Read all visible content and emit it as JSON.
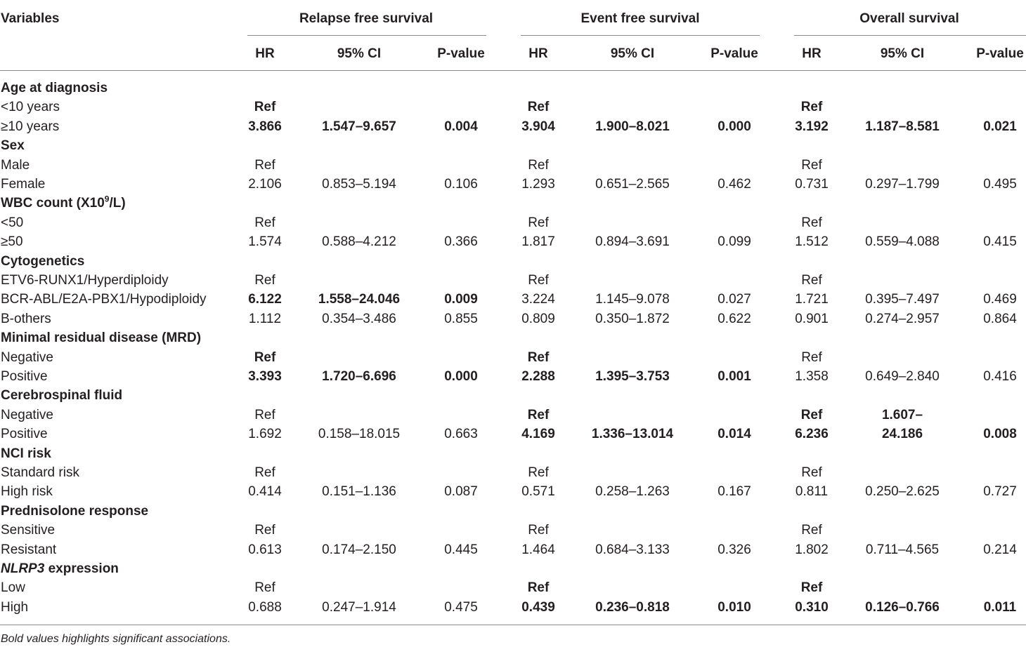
{
  "header": {
    "variables": "Variables",
    "groups": [
      "Relapse free survival",
      "Event free survival",
      "Overall survival"
    ],
    "sub": [
      "HR",
      "95% CI",
      "P-value"
    ]
  },
  "rows": [
    {
      "type": "cat",
      "label": "Age at diagnosis"
    },
    {
      "type": "data",
      "label": "<10 years",
      "v": [
        "Ref",
        "",
        "",
        "Ref",
        "",
        "",
        "Ref",
        "",
        ""
      ],
      "bold": [
        1,
        0,
        0,
        1,
        0,
        0,
        1,
        0,
        0
      ]
    },
    {
      "type": "data",
      "label": "≥10 years",
      "v": [
        "3.866",
        "1.547–9.657",
        "0.004",
        "3.904",
        "1.900–8.021",
        "0.000",
        "3.192",
        "1.187–8.581",
        "0.021"
      ],
      "bold": [
        1,
        1,
        1,
        1,
        1,
        1,
        1,
        1,
        1
      ]
    },
    {
      "type": "cat",
      "label": "Sex"
    },
    {
      "type": "data",
      "label": "Male",
      "v": [
        "Ref",
        "",
        "",
        "Ref",
        "",
        "",
        "Ref",
        "",
        ""
      ],
      "bold": [
        0,
        0,
        0,
        0,
        0,
        0,
        0,
        0,
        0
      ]
    },
    {
      "type": "data",
      "label": "Female",
      "v": [
        "2.106",
        "0.853–5.194",
        "0.106",
        "1.293",
        "0.651–2.565",
        "0.462",
        "0.731",
        "0.297–1.799",
        "0.495"
      ],
      "bold": [
        0,
        0,
        0,
        0,
        0,
        0,
        0,
        0,
        0
      ]
    },
    {
      "type": "cat",
      "label": "WBC count (X10",
      "sup": "9",
      "after": "/L)"
    },
    {
      "type": "data",
      "label": "<50",
      "v": [
        "Ref",
        "",
        "",
        "Ref",
        "",
        "",
        "Ref",
        "",
        ""
      ],
      "bold": [
        0,
        0,
        0,
        0,
        0,
        0,
        0,
        0,
        0
      ]
    },
    {
      "type": "data",
      "label": "≥50",
      "v": [
        "1.574",
        "0.588–4.212",
        "0.366",
        "1.817",
        "0.894–3.691",
        "0.099",
        "1.512",
        "0.559–4.088",
        "0.415"
      ],
      "bold": [
        0,
        0,
        0,
        0,
        0,
        0,
        0,
        0,
        0
      ]
    },
    {
      "type": "cat",
      "label": "Cytogenetics"
    },
    {
      "type": "data",
      "label": "ETV6-RUNX1/Hyperdiploidy",
      "v": [
        "Ref",
        "",
        "",
        "Ref",
        "",
        "",
        "Ref",
        "",
        ""
      ],
      "bold": [
        0,
        0,
        0,
        0,
        0,
        0,
        0,
        0,
        0
      ]
    },
    {
      "type": "data",
      "label": "BCR-ABL/E2A-PBX1/Hypodiploidy",
      "v": [
        "6.122",
        "1.558–24.046",
        "0.009",
        "3.224",
        "1.145–9.078",
        "0.027",
        "1.721",
        "0.395–7.497",
        "0.469"
      ],
      "bold": [
        1,
        1,
        1,
        0,
        0,
        0,
        0,
        0,
        0
      ]
    },
    {
      "type": "data",
      "label": "B-others",
      "v": [
        "1.112",
        "0.354–3.486",
        "0.855",
        "0.809",
        "0.350–1.872",
        "0.622",
        "0.901",
        "0.274–2.957",
        "0.864"
      ],
      "bold": [
        0,
        0,
        0,
        0,
        0,
        0,
        0,
        0,
        0
      ]
    },
    {
      "type": "cat",
      "label": "Minimal residual disease (MRD)"
    },
    {
      "type": "data",
      "label": "Negative",
      "v": [
        "Ref",
        "",
        "",
        "Ref",
        "",
        "",
        "Ref",
        "",
        ""
      ],
      "bold": [
        1,
        0,
        0,
        1,
        0,
        0,
        0,
        0,
        0
      ]
    },
    {
      "type": "data",
      "label": "Positive",
      "v": [
        "3.393",
        "1.720–6.696",
        "0.000",
        "2.288",
        "1.395–3.753",
        "0.001",
        "1.358",
        "0.649–2.840",
        "0.416"
      ],
      "bold": [
        1,
        1,
        1,
        1,
        1,
        1,
        0,
        0,
        0
      ]
    },
    {
      "type": "cat",
      "label": "Cerebrospinal fluid"
    },
    {
      "type": "data",
      "label": "Negative",
      "v": [
        "Ref",
        "",
        "",
        "Ref",
        "",
        "",
        "Ref",
        "1.607–",
        ""
      ],
      "bold": [
        0,
        0,
        0,
        1,
        0,
        0,
        1,
        1,
        0
      ]
    },
    {
      "type": "data",
      "label": "Positive",
      "v": [
        "1.692",
        "0.158–18.015",
        "0.663",
        "4.169",
        "1.336–13.014",
        "0.014",
        "6.236",
        "24.186",
        "0.008"
      ],
      "bold": [
        0,
        0,
        0,
        1,
        1,
        1,
        1,
        1,
        1
      ]
    },
    {
      "type": "cat",
      "label": "NCI risk"
    },
    {
      "type": "data",
      "label": "Standard risk",
      "v": [
        "Ref",
        "",
        "",
        "Ref",
        "",
        "",
        "Ref",
        "",
        ""
      ],
      "bold": [
        0,
        0,
        0,
        0,
        0,
        0,
        0,
        0,
        0
      ]
    },
    {
      "type": "data",
      "label": "High risk",
      "v": [
        "0.414",
        "0.151–1.136",
        "0.087",
        "0.571",
        "0.258–1.263",
        "0.167",
        "0.811",
        "0.250–2.625",
        "0.727"
      ],
      "bold": [
        0,
        0,
        0,
        0,
        0,
        0,
        0,
        0,
        0
      ]
    },
    {
      "type": "cat",
      "label": "Prednisolone response"
    },
    {
      "type": "data",
      "label": "Sensitive",
      "v": [
        "Ref",
        "",
        "",
        "Ref",
        "",
        "",
        "Ref",
        "",
        ""
      ],
      "bold": [
        0,
        0,
        0,
        0,
        0,
        0,
        0,
        0,
        0
      ]
    },
    {
      "type": "data",
      "label": "Resistant",
      "v": [
        "0.613",
        "0.174–2.150",
        "0.445",
        "1.464",
        "0.684–3.133",
        "0.326",
        "1.802",
        "0.711–4.565",
        "0.214"
      ],
      "bold": [
        0,
        0,
        0,
        0,
        0,
        0,
        0,
        0,
        0
      ]
    },
    {
      "type": "cat",
      "label": "NLRP3",
      "after": " expression",
      "italic_label": true
    },
    {
      "type": "data",
      "label": "Low",
      "v": [
        "Ref",
        "",
        "",
        "Ref",
        "",
        "",
        "Ref",
        "",
        ""
      ],
      "bold": [
        0,
        0,
        0,
        1,
        0,
        0,
        1,
        0,
        0
      ]
    },
    {
      "type": "data",
      "label": "High",
      "v": [
        "0.688",
        "0.247–1.914",
        "0.475",
        "0.439",
        "0.236–0.818",
        "0.010",
        "0.310",
        "0.126–0.766",
        "0.011"
      ],
      "bold": [
        0,
        0,
        0,
        1,
        1,
        1,
        1,
        1,
        1
      ]
    }
  ],
  "footnote": "Bold values highlights significant associations."
}
